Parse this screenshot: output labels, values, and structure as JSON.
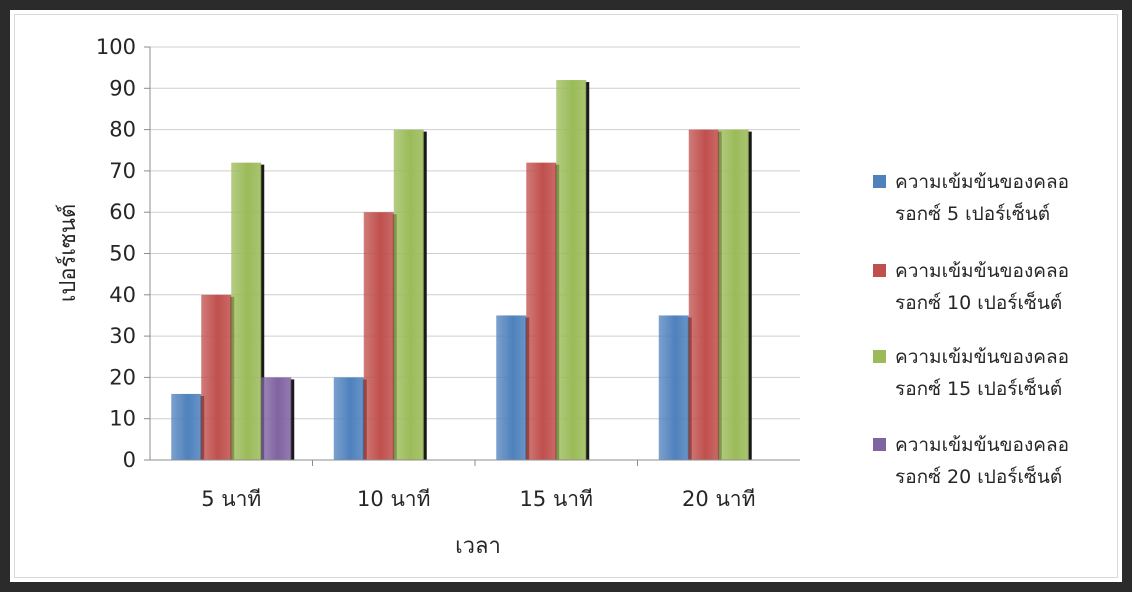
{
  "chart_data": {
    "type": "bar",
    "title": "",
    "xlabel": "เวลา",
    "ylabel": "เปอร์เซนต์",
    "ylim": [
      0,
      100
    ],
    "yticks": [
      0,
      10,
      20,
      30,
      40,
      50,
      60,
      70,
      80,
      90,
      100
    ],
    "categories": [
      "5 นาที",
      "10 นาที",
      "15 นาที",
      "20 นาที"
    ],
    "grid": true,
    "legend_position": "right",
    "series": [
      {
        "name_line1": "ความเข้มข้นของคลอ",
        "name_line2": "รอกซ์ 5 เปอร์เซ็นต์",
        "color": "#4f81bd",
        "values": [
          16,
          20,
          35,
          35
        ]
      },
      {
        "name_line1": "ความเข้มข้นของคลอ",
        "name_line2": "รอกซ์ 10 เปอร์เซ็นต์",
        "color": "#c0504d",
        "values": [
          40,
          60,
          72,
          80
        ]
      },
      {
        "name_line1": "ความเข้มข้นของคลอ",
        "name_line2": "รอกซ์ 15 เปอร์เซ็นต์",
        "color": "#9bbb59",
        "values": [
          72,
          80,
          92,
          80
        ]
      },
      {
        "name_line1": "ความเข้มข้นของคลอ",
        "name_line2": "รอกซ์ 20 เปอร์เซ็นต์",
        "color": "#8064a2",
        "values": [
          20,
          null,
          null,
          null
        ]
      }
    ]
  }
}
